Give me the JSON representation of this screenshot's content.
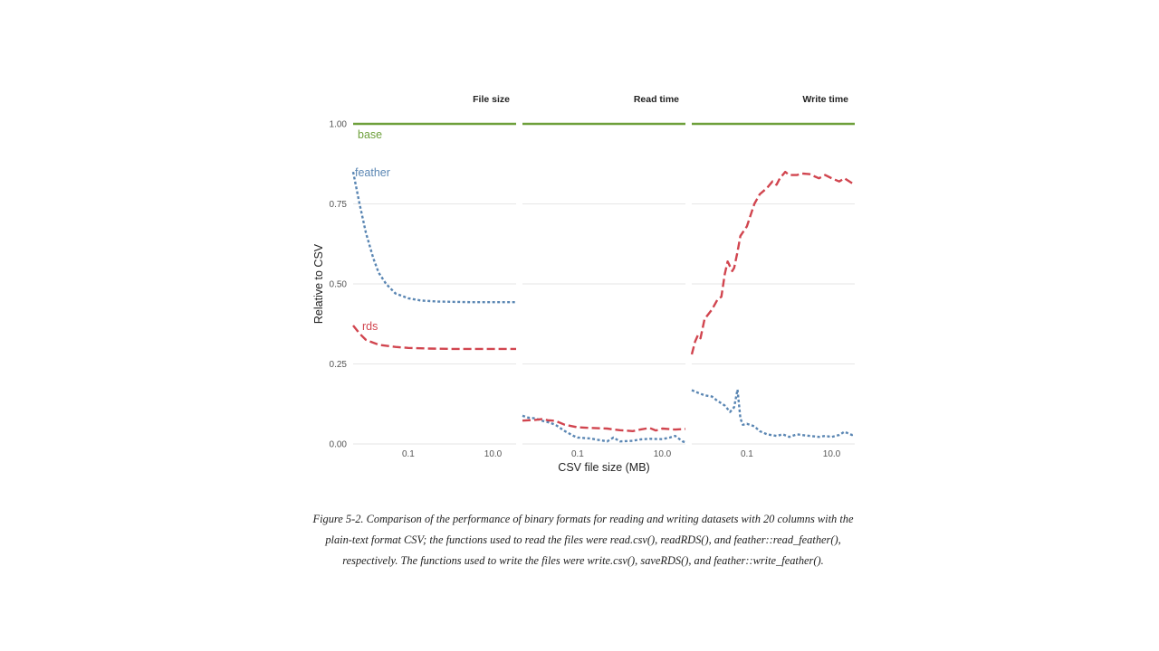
{
  "chart_data": {
    "type": "line",
    "ylabel": "Relative to CSV",
    "xlabel": "CSV file size (MB)",
    "x_scale": "log10",
    "xlim": [
      0.005,
      35
    ],
    "ylim": [
      0,
      1
    ],
    "y_ticks": [
      0,
      0.25,
      0.5,
      0.75,
      1
    ],
    "y_tick_labels": [
      "0.00",
      "0.25",
      "0.50",
      "0.75",
      "1.00"
    ],
    "x_ticks": [
      0.1,
      10
    ],
    "x_tick_labels": [
      "0.1",
      "10.0"
    ],
    "grid": true,
    "legend": "direct labels in first panel",
    "series_labels": [
      "base",
      "feather",
      "rds"
    ],
    "panels": [
      {
        "title": "File size",
        "series": [
          {
            "name": "base",
            "color": "#6ea03b",
            "dash": "solid",
            "points": [
              [
                0.005,
                1.0
              ],
              [
                35,
                1.0
              ]
            ]
          },
          {
            "name": "feather",
            "color": "#5a86b3",
            "dash": "dotted",
            "points": [
              [
                0.005,
                0.85
              ],
              [
                0.0071,
                0.75
              ],
              [
                0.01,
                0.66
              ],
              [
                0.015,
                0.58
              ],
              [
                0.02,
                0.535
              ],
              [
                0.03,
                0.5
              ],
              [
                0.05,
                0.47
              ],
              [
                0.1,
                0.455
              ],
              [
                0.2,
                0.448
              ],
              [
                0.5,
                0.445
              ],
              [
                1,
                0.444
              ],
              [
                3,
                0.443
              ],
              [
                10,
                0.443
              ],
              [
                35,
                0.443
              ]
            ]
          },
          {
            "name": "rds",
            "color": "#d1454f",
            "dash": "dashed",
            "points": [
              [
                0.005,
                0.37
              ],
              [
                0.0071,
                0.345
              ],
              [
                0.01,
                0.325
              ],
              [
                0.02,
                0.31
              ],
              [
                0.05,
                0.303
              ],
              [
                0.1,
                0.3
              ],
              [
                0.3,
                0.298
              ],
              [
                1,
                0.297
              ],
              [
                10,
                0.297
              ],
              [
                35,
                0.297
              ]
            ]
          }
        ]
      },
      {
        "title": "Read time",
        "series": [
          {
            "name": "base",
            "color": "#6ea03b",
            "dash": "solid",
            "points": [
              [
                0.005,
                1.0
              ],
              [
                35,
                1.0
              ]
            ]
          },
          {
            "name": "feather",
            "color": "#5a86b3",
            "dash": "dotted",
            "points": [
              [
                0.005,
                0.088
              ],
              [
                0.007,
                0.082
              ],
              [
                0.01,
                0.08
              ],
              [
                0.015,
                0.072
              ],
              [
                0.02,
                0.068
              ],
              [
                0.03,
                0.06
              ],
              [
                0.05,
                0.04
              ],
              [
                0.08,
                0.025
              ],
              [
                0.1,
                0.02
              ],
              [
                0.2,
                0.017
              ],
              [
                0.3,
                0.013
              ],
              [
                0.5,
                0.008
              ],
              [
                0.7,
                0.02
              ],
              [
                1,
                0.008
              ],
              [
                2,
                0.01
              ],
              [
                3,
                0.014
              ],
              [
                5,
                0.016
              ],
              [
                10,
                0.015
              ],
              [
                15,
                0.02
              ],
              [
                20,
                0.025
              ],
              [
                30,
                0.008
              ],
              [
                35,
                0.005
              ]
            ]
          },
          {
            "name": "rds",
            "color": "#d1454f",
            "dash": "dashed",
            "points": [
              [
                0.005,
                0.073
              ],
              [
                0.01,
                0.075
              ],
              [
                0.015,
                0.078
              ],
              [
                0.02,
                0.074
              ],
              [
                0.03,
                0.072
              ],
              [
                0.05,
                0.06
              ],
              [
                0.1,
                0.052
              ],
              [
                0.2,
                0.05
              ],
              [
                0.5,
                0.048
              ],
              [
                1,
                0.043
              ],
              [
                2,
                0.04
              ],
              [
                3,
                0.045
              ],
              [
                5,
                0.05
              ],
              [
                7,
                0.042
              ],
              [
                10,
                0.048
              ],
              [
                20,
                0.045
              ],
              [
                35,
                0.047
              ]
            ]
          }
        ]
      },
      {
        "title": "Write time",
        "series": [
          {
            "name": "base",
            "color": "#6ea03b",
            "dash": "solid",
            "points": [
              [
                0.005,
                1.0
              ],
              [
                35,
                1.0
              ]
            ]
          },
          {
            "name": "feather",
            "color": "#5a86b3",
            "dash": "dotted",
            "points": [
              [
                0.005,
                0.168
              ],
              [
                0.007,
                0.16
              ],
              [
                0.01,
                0.152
              ],
              [
                0.015,
                0.148
              ],
              [
                0.02,
                0.135
              ],
              [
                0.03,
                0.12
              ],
              [
                0.04,
                0.1
              ],
              [
                0.05,
                0.115
              ],
              [
                0.06,
                0.17
              ],
              [
                0.07,
                0.08
              ],
              [
                0.08,
                0.06
              ],
              [
                0.1,
                0.063
              ],
              [
                0.15,
                0.055
              ],
              [
                0.2,
                0.04
              ],
              [
                0.3,
                0.03
              ],
              [
                0.5,
                0.025
              ],
              [
                0.7,
                0.03
              ],
              [
                1,
                0.022
              ],
              [
                1.5,
                0.03
              ],
              [
                2,
                0.028
              ],
              [
                3,
                0.025
              ],
              [
                5,
                0.022
              ],
              [
                7,
                0.025
              ],
              [
                10,
                0.022
              ],
              [
                15,
                0.028
              ],
              [
                20,
                0.038
              ],
              [
                30,
                0.028
              ],
              [
                35,
                0.03
              ]
            ]
          },
          {
            "name": "rds",
            "color": "#d1454f",
            "dash": "dashed",
            "points": [
              [
                0.005,
                0.28
              ],
              [
                0.006,
                0.32
              ],
              [
                0.007,
                0.34
              ],
              [
                0.008,
                0.33
              ],
              [
                0.01,
                0.39
              ],
              [
                0.015,
                0.42
              ],
              [
                0.02,
                0.45
              ],
              [
                0.025,
                0.46
              ],
              [
                0.03,
                0.53
              ],
              [
                0.035,
                0.57
              ],
              [
                0.045,
                0.54
              ],
              [
                0.05,
                0.55
              ],
              [
                0.06,
                0.6
              ],
              [
                0.07,
                0.65
              ],
              [
                0.1,
                0.68
              ],
              [
                0.15,
                0.75
              ],
              [
                0.2,
                0.78
              ],
              [
                0.3,
                0.8
              ],
              [
                0.4,
                0.82
              ],
              [
                0.5,
                0.81
              ],
              [
                0.6,
                0.83
              ],
              [
                0.8,
                0.85
              ],
              [
                1,
                0.84
              ],
              [
                1.5,
                0.84
              ],
              [
                2,
                0.845
              ],
              [
                3,
                0.843
              ],
              [
                5,
                0.83
              ],
              [
                7,
                0.84
              ],
              [
                10,
                0.83
              ],
              [
                15,
                0.82
              ],
              [
                20,
                0.83
              ],
              [
                30,
                0.815
              ],
              [
                35,
                0.81
              ]
            ]
          }
        ]
      }
    ]
  },
  "caption": {
    "lines": [
      "Figure 5-2. Comparison of the performance of binary formats for reading and writing datasets with 20 columns with the",
      "plain-text format CSV; the functions used to read the files were read.csv(), readRDS(), and feather::read_feather(),",
      "respectively. The functions used to write the files were write.csv(), saveRDS(), and feather::write_feather()."
    ]
  }
}
